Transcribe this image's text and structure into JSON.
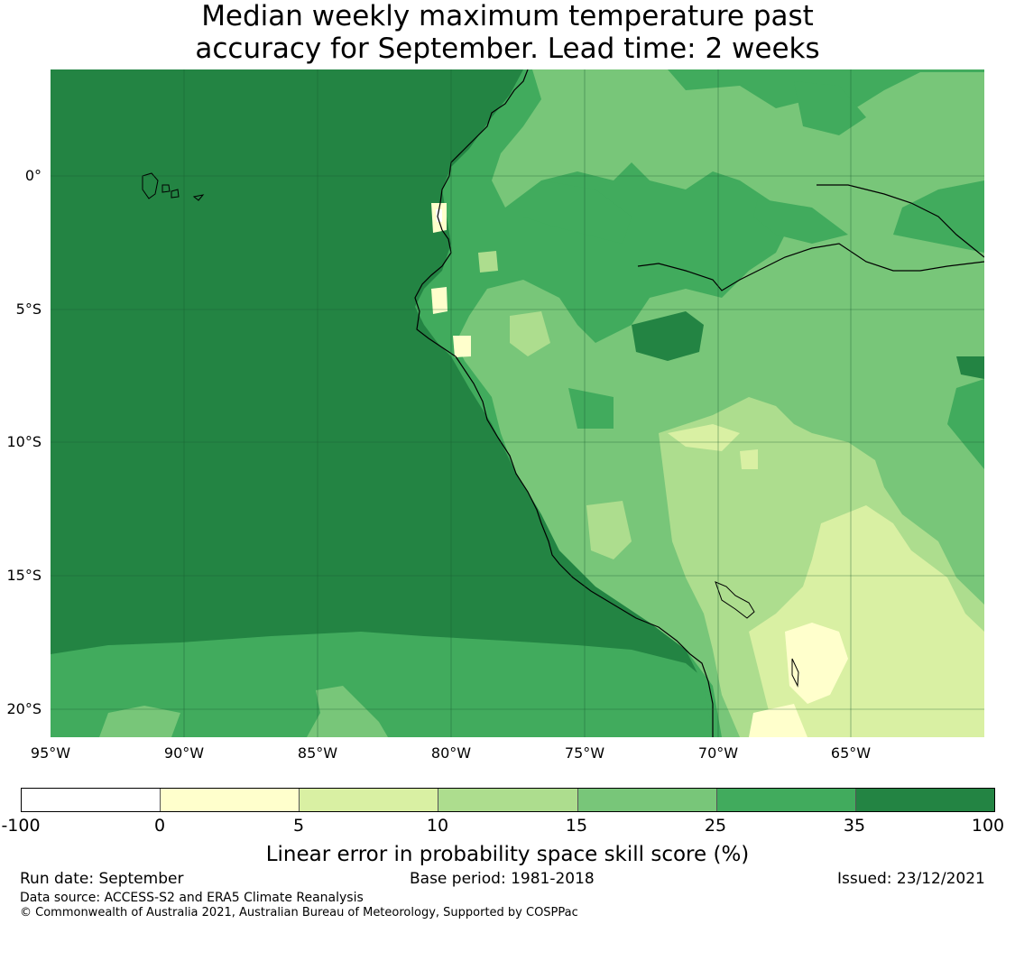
{
  "title": {
    "line1": "Median weekly maximum temperature past",
    "line2": "accuracy for September. Lead time: 2 weeks"
  },
  "map": {
    "lat_labels": [
      "0°",
      "5°S",
      "10°S",
      "15°S",
      "20°S"
    ],
    "lon_labels": [
      "95°W",
      "90°W",
      "85°W",
      "80°W",
      "75°W",
      "70°W",
      "65°W"
    ],
    "colors": {
      "ocean": "#238443",
      "c35": "#41ab5d",
      "c25": "#78c679",
      "c15": "#addd8e",
      "c10": "#d9f0a3",
      "c5": "#ffffcc",
      "neg": "#ffffff"
    }
  },
  "colorbar": {
    "colors": [
      "#ffffff",
      "#ffffcc",
      "#d9f0a3",
      "#addd8e",
      "#78c679",
      "#41ab5d",
      "#238443"
    ],
    "ticks": [
      "-100",
      "0",
      "5",
      "10",
      "15",
      "25",
      "35",
      "100"
    ],
    "label": "Linear error in probability space skill score (%)"
  },
  "footer": {
    "run_date": "Run date: September",
    "base_period": "Base period: 1981-2018",
    "issued": "Issued: 23/12/2021",
    "data_source": "Data source: ACCESS-S2 and ERA5 Climate Reanalysis",
    "copyright": "© Commonwealth of Australia 2021, Australian Bureau of Meteorology, Supported by COSPPac"
  }
}
